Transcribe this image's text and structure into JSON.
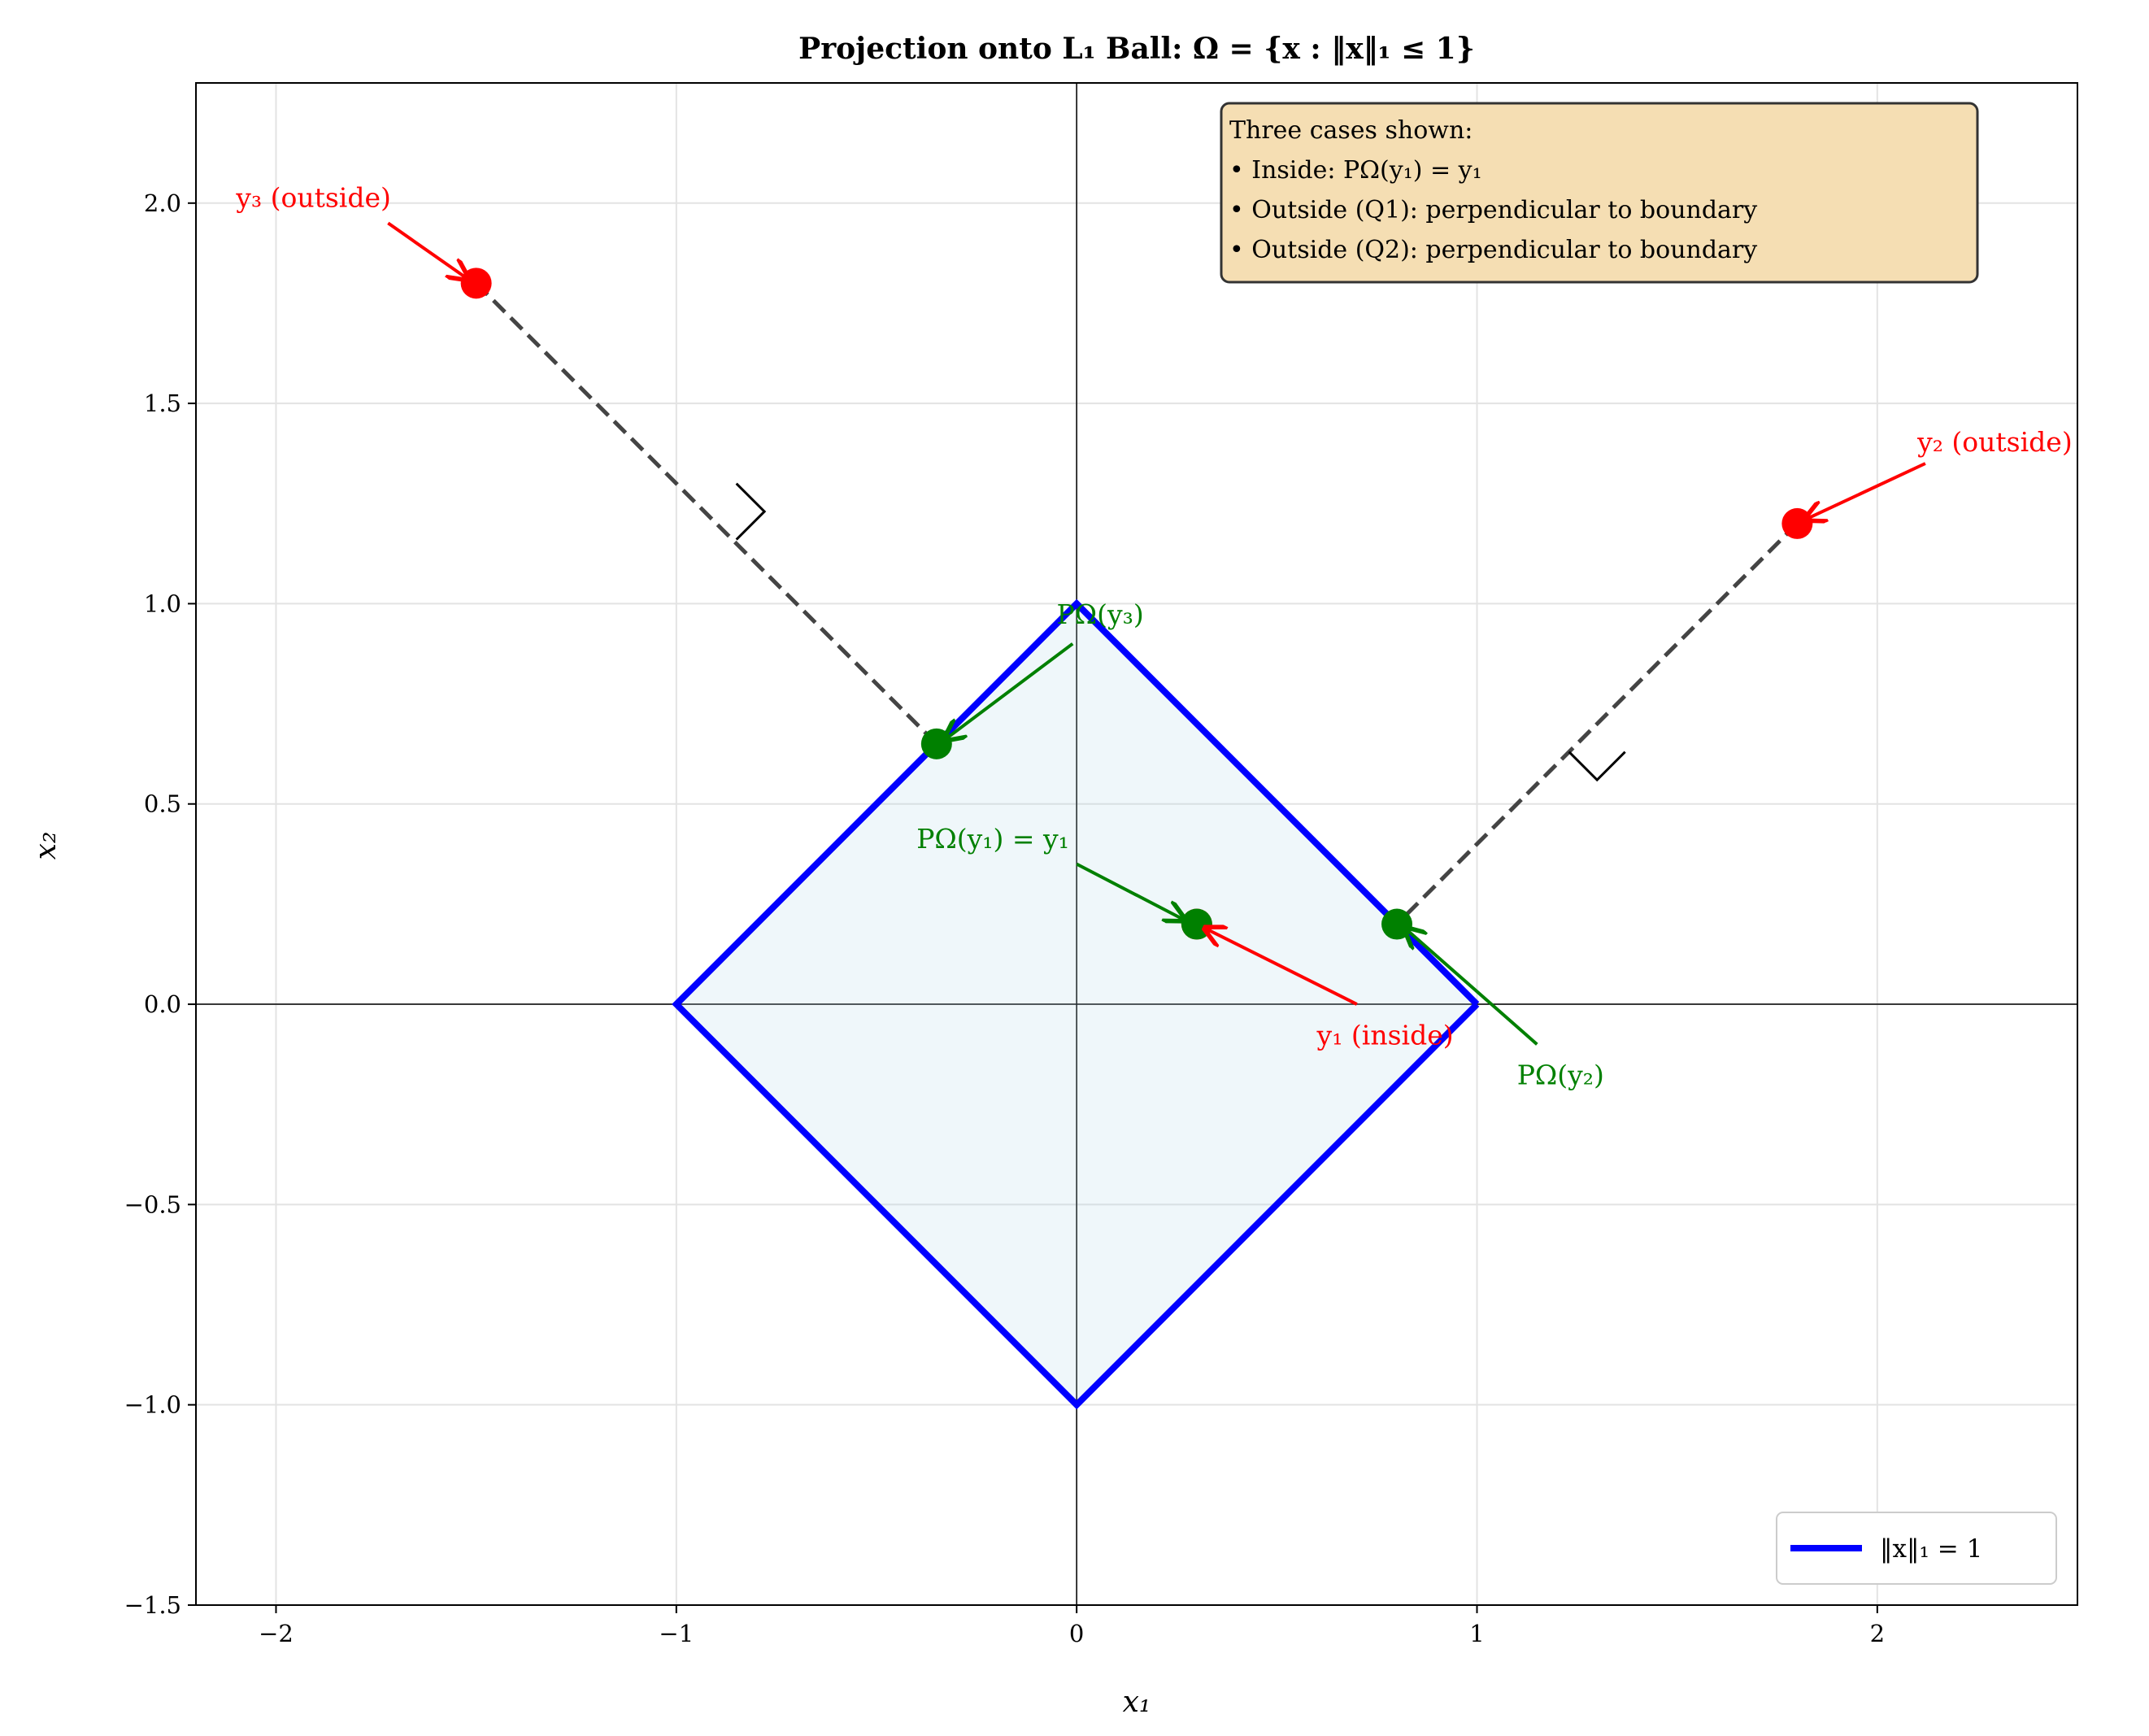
{
  "chart_data": {
    "type": "line",
    "title": "Projection onto L₁ Ball: Ω = {x : ‖x‖₁ ≤ 1}",
    "xlabel": "x₁",
    "ylabel": "x₂",
    "xlim": [
      -2.2,
      2.5
    ],
    "ylim": [
      -1.5,
      2.3
    ],
    "grid": true,
    "xticks": [
      -2,
      -1,
      0,
      1,
      2
    ],
    "xtick_labels": [
      "−2",
      "−1",
      "0",
      "1",
      "2"
    ],
    "yticks": [
      -1.5,
      -1.0,
      -0.5,
      0.0,
      0.5,
      1.0,
      1.5,
      2.0
    ],
    "ytick_labels": [
      "−1.5",
      "−1.0",
      "−0.5",
      "0.0",
      "0.5",
      "1.0",
      "1.5",
      "2.0"
    ],
    "boundary": {
      "name": "‖x‖₁ = 1",
      "color": "#0000ff",
      "x": [
        1,
        0,
        -1,
        0,
        1
      ],
      "y": [
        0,
        1,
        0,
        -1,
        0
      ],
      "fill": "#add8e6"
    },
    "legend": {
      "placement": "bottom-right",
      "entries": [
        "‖x‖₁ = 1"
      ]
    },
    "points": [
      {
        "name": "y1",
        "x": 0.3,
        "y": 0.2,
        "color": "#ff0000"
      },
      {
        "name": "y2",
        "x": 1.8,
        "y": 1.2,
        "color": "#ff0000"
      },
      {
        "name": "y3",
        "x": -1.5,
        "y": 1.8,
        "color": "#ff0000"
      },
      {
        "name": "P(y1)",
        "x": 0.3,
        "y": 0.2,
        "color": "#008000"
      },
      {
        "name": "P(y2)",
        "x": 0.8,
        "y": 0.2,
        "color": "#008000"
      },
      {
        "name": "P(y3)",
        "x": -0.35,
        "y": 0.65,
        "color": "#008000"
      }
    ],
    "projection_lines": [
      {
        "from": [
          1.8,
          1.2
        ],
        "to": [
          0.8,
          0.2
        ]
      },
      {
        "from": [
          -1.5,
          1.8
        ],
        "to": [
          -0.35,
          0.65
        ]
      }
    ],
    "right_angle_markers": [
      {
        "at": [
          -0.85,
          1.2
        ],
        "pts": [
          [
            -0.85,
            1.3
          ],
          [
            -0.78,
            1.23
          ],
          [
            -0.85,
            1.16
          ]
        ]
      },
      {
        "at": [
          1.3,
          0.6
        ],
        "pts": [
          [
            1.23,
            0.63
          ],
          [
            1.3,
            0.56
          ],
          [
            1.37,
            0.63
          ]
        ]
      }
    ],
    "annotations": [
      {
        "text": "y₃ (outside)",
        "text_xy": [
          -2.1,
          1.99
        ],
        "arrow_from": [
          -1.72,
          1.95
        ],
        "arrow_to": [
          -1.52,
          1.81
        ],
        "color": "#ff0000"
      },
      {
        "text": "y₂ (outside)",
        "text_xy": [
          2.1,
          1.38
        ],
        "arrow_from": [
          2.12,
          1.35
        ],
        "arrow_to": [
          1.82,
          1.21
        ],
        "color": "#ff0000"
      },
      {
        "text": "y₁ (inside)",
        "text_xy": [
          0.6,
          -0.1
        ],
        "arrow_from": [
          0.7,
          0.0
        ],
        "arrow_to": [
          0.32,
          0.19
        ],
        "color": "#ff0000"
      },
      {
        "text": "PΩ(y₁) = y₁",
        "text_xy": [
          -0.4,
          0.39
        ],
        "arrow_from": [
          0.0,
          0.35
        ],
        "arrow_to": [
          0.27,
          0.21
        ],
        "color": "#008000"
      },
      {
        "text": "PΩ(y₂)",
        "text_xy": [
          1.1,
          -0.2
        ],
        "arrow_from": [
          1.15,
          -0.1
        ],
        "arrow_to": [
          0.82,
          0.19
        ],
        "color": "#008000"
      },
      {
        "text": "PΩ(y₃)",
        "text_xy": [
          -0.05,
          0.95
        ],
        "arrow_from": [
          -0.01,
          0.9
        ],
        "arrow_to": [
          -0.33,
          0.66
        ],
        "color": "#008000"
      }
    ],
    "info_box": {
      "lines": [
        "Three cases shown:",
        "• Inside: PΩ(y₁) = y₁",
        "• Outside (Q1): perpendicular to boundary",
        "• Outside (Q2): perpendicular to boundary"
      ],
      "background": "#f5deb3"
    }
  }
}
